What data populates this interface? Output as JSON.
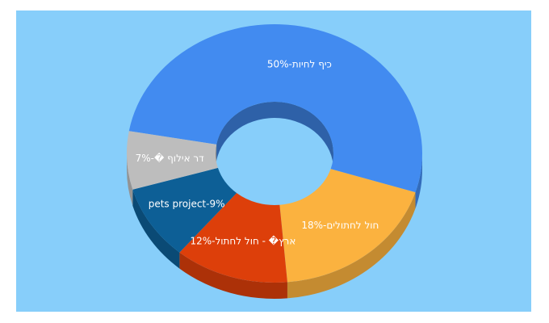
{
  "chart_data": {
    "type": "pie",
    "style": "3d-donut",
    "title": "",
    "categories": [
      "כיף לחיות",
      "חול לחתולים",
      "ארץ� - חול לחתול",
      "pets project",
      "דר אילוף �"
    ],
    "values": [
      50,
      18,
      12,
      9,
      7
    ],
    "labels": [
      "כיף לחיות-50%",
      "חול לחתולים-18%",
      "ארץ� - חול לחתול-12%",
      "pets project-9%",
      "דר אילוף �-7%"
    ],
    "colors": [
      "#428bf0",
      "#fbb23f",
      "#dd3f0a",
      "#0d5f96",
      "#bdbdbd"
    ],
    "background": "#87cefa",
    "legend": "none"
  }
}
